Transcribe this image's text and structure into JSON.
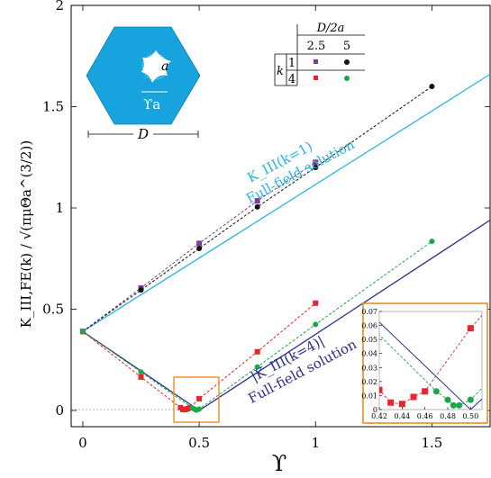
{
  "chart_data": {
    "type": "line",
    "xlabel": "ϒ",
    "ylabel": "K_III,FE(k) / √(πμΘa^(3/2))",
    "xlim": [
      -0.05,
      1.75
    ],
    "ylim": [
      -0.08,
      2.0
    ],
    "xticks": [
      "0",
      "0.5",
      "1",
      "1.5"
    ],
    "yticks": [
      "0",
      "0.5",
      "1",
      "1.5",
      "2"
    ],
    "grid": false,
    "series": [
      {
        "name": "D/2a=2.5, k=1",
        "color": "#7e3d96",
        "marker": "square",
        "x": [
          0,
          0.25,
          0.5,
          0.75,
          1.0
        ],
        "y": [
          0.39,
          0.605,
          0.825,
          1.035,
          1.225
        ]
      },
      {
        "name": "D/2a=5, k=1",
        "color": "#111111",
        "marker": "circle",
        "x": [
          0,
          0.25,
          0.5,
          0.75,
          1.0,
          1.5
        ],
        "y": [
          0.39,
          0.595,
          0.8,
          1.005,
          1.2,
          1.6
        ]
      },
      {
        "name": "D/2a=2.5, k=4",
        "color": "#e8252b",
        "marker": "square",
        "x": [
          0,
          0.25,
          0.42,
          0.43,
          0.44,
          0.45,
          0.46,
          0.5,
          0.75,
          1.0
        ],
        "y": [
          0.39,
          0.165,
          0.014,
          0.005,
          0.004,
          0.009,
          0.013,
          0.058,
          0.29,
          0.53
        ]
      },
      {
        "name": "D/2a=5, k=4",
        "color": "#1aa64a",
        "marker": "circle",
        "x": [
          0,
          0.25,
          0.47,
          0.48,
          0.485,
          0.49,
          0.5,
          0.75,
          1.0,
          1.5
        ],
        "y": [
          0.39,
          0.19,
          0.013,
          0.007,
          0.003,
          0.003,
          0.007,
          0.215,
          0.425,
          0.835
        ]
      }
    ],
    "reference_lines": [
      {
        "name": "K_III(k=1)",
        "color": "#29b6e0",
        "x": [
          0,
          1.75
        ],
        "y": [
          0.39,
          1.66
        ]
      },
      {
        "name": "|K_III(k=4)|",
        "color": "#2d2e8a",
        "x": [
          0,
          0.5,
          1.75
        ],
        "y": [
          0.39,
          0.0,
          0.94
        ]
      }
    ],
    "annotations": {
      "k1_line_label": "K_III(k=1)",
      "k1_line_sub": "Full-field solution",
      "k4_line_label": "|K_III(k=4)|",
      "k4_line_sub": "Full-field solution"
    },
    "legend_table": {
      "header_top": "D/2a",
      "col_values": [
        "2.5",
        "5"
      ],
      "row_label": "k",
      "row_values": [
        "1",
        "4"
      ]
    },
    "schematic": {
      "label_a": "a",
      "label_gamma_a": "ϒa",
      "label_D": "D",
      "fill_color": "#16a3de"
    },
    "inset": {
      "xlim": [
        0.42,
        0.51
      ],
      "ylim": [
        0,
        0.07
      ],
      "xticks": [
        "0.42",
        "0.44",
        "0.46",
        "0.48",
        "0.50"
      ],
      "yticks": [
        "0",
        "0.01",
        "0.02",
        "0.03",
        "0.04",
        "0.05",
        "0.06",
        "0.07"
      ],
      "border_color": "#f08a1f"
    }
  }
}
